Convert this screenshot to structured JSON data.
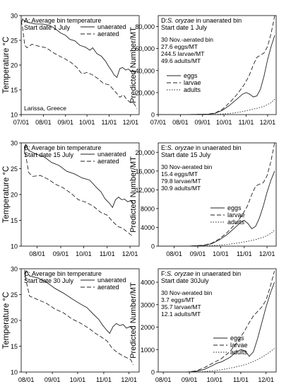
{
  "chart_data": [
    {
      "type": "line",
      "panel": "A",
      "title": "A: Average bin temperature",
      "subtitle": "Start date 1 July",
      "annotations": [
        "Larissa, Greece"
      ],
      "ylabel": "Temperature °C",
      "xlabel": "",
      "y_ticks": [
        10,
        15,
        20,
        25,
        30
      ],
      "ylim": [
        10,
        30
      ],
      "x_ticks": [
        "07/01",
        "08/01",
        "09/01",
        "10/01",
        "11/01",
        "12/01"
      ],
      "x_tick_days": [
        0,
        31,
        62,
        92,
        123,
        153
      ],
      "xlim_days": [
        0,
        165
      ],
      "legend": "top-right",
      "series": [
        {
          "name": "unaerated",
          "style": "solid",
          "x": [
            0,
            2,
            5,
            10,
            20,
            30,
            40,
            48,
            55,
            62,
            68,
            75,
            82,
            90,
            96,
            100,
            106,
            112,
            118,
            122,
            126,
            130,
            134,
            138,
            142,
            146,
            150,
            154,
            156,
            158,
            160
          ],
          "y": [
            28.3,
            29.3,
            28.8,
            28.6,
            28.3,
            28.3,
            28.0,
            27.3,
            26.5,
            26.0,
            25.2,
            24.9,
            24.0,
            23.6,
            23.0,
            23.5,
            22.3,
            21.8,
            20.8,
            19.8,
            19.0,
            18.0,
            17.5,
            19.3,
            19.5,
            19.0,
            19.2,
            18.7,
            19.0,
            18.5,
            18.4
          ]
        },
        {
          "name": "aerated",
          "style": "dashed",
          "x": [
            0,
            2,
            5,
            8,
            15,
            25,
            35,
            45,
            55,
            62,
            70,
            78,
            85,
            92,
            100,
            108,
            115,
            123,
            128,
            133,
            138,
            143,
            148,
            153,
            158,
            162
          ],
          "y": [
            29.0,
            27.5,
            24.0,
            23.5,
            24.2,
            23.8,
            23.5,
            22.5,
            21.7,
            21.2,
            20.5,
            19.5,
            18.2,
            18.5,
            18.0,
            17.2,
            16.3,
            16.0,
            15.2,
            14.4,
            13.5,
            14.0,
            13.0,
            12.4,
            12.2,
            11.2
          ]
        }
      ]
    },
    {
      "type": "line",
      "panel": "D",
      "title_prefix": "D:",
      "title_species": "S. oryzae",
      "title_suffix": " in unaerated bin",
      "subtitle": "Start date 1 July",
      "annotations": [
        "30 Nov.-aerated bin",
        "27.6 eggs/MT",
        "244.5 larvae/MT",
        "49.6 adults/MT"
      ],
      "ylabel": "Predicted Number/MT",
      "xlabel": "",
      "y_ticks": [
        0,
        20000,
        40000,
        60000,
        80000
      ],
      "y_tick_labels": [
        "0",
        "20,000",
        "40,000",
        "60,000",
        "80,000"
      ],
      "ylim": [
        0,
        90000
      ],
      "x_ticks": [
        "07/01",
        "08/01",
        "09/01",
        "10/01",
        "11/01",
        "12/01"
      ],
      "x_tick_days": [
        0,
        31,
        62,
        92,
        123,
        153
      ],
      "xlim_days": [
        0,
        165
      ],
      "legend": "center-left",
      "series": [
        {
          "name": "eggs",
          "style": "solid",
          "x": [
            0,
            40,
            70,
            80,
            90,
            100,
            110,
            118,
            123,
            128,
            133,
            138,
            143,
            148,
            153,
            158,
            163
          ],
          "y": [
            0,
            0,
            300,
            1200,
            4000,
            8500,
            14000,
            18500,
            20000,
            18500,
            16000,
            17000,
            23000,
            35000,
            50000,
            62000,
            72000
          ]
        },
        {
          "name": "larvae",
          "style": "dashed",
          "x": [
            0,
            40,
            70,
            80,
            90,
            100,
            110,
            120,
            127,
            133,
            138,
            143,
            148,
            153,
            158,
            163
          ],
          "y": [
            0,
            0,
            400,
            1500,
            5000,
            11000,
            18000,
            27000,
            35000,
            45000,
            52000,
            54000,
            56000,
            62000,
            74000,
            90000
          ]
        },
        {
          "name": "adults",
          "style": "dotted",
          "x": [
            0,
            60,
            80,
            90,
            100,
            110,
            120,
            130,
            140,
            150,
            158,
            163
          ],
          "y": [
            0,
            0,
            200,
            500,
            1000,
            1800,
            3000,
            4500,
            6000,
            8000,
            11000,
            14000
          ]
        }
      ]
    },
    {
      "type": "line",
      "panel": "B",
      "title": "B: Average bin temperature",
      "subtitle": "Start date 15 July",
      "ylabel": "Temperature °C",
      "xlabel": "",
      "y_ticks": [
        10,
        15,
        20,
        25,
        30
      ],
      "ylim": [
        10,
        30
      ],
      "x_ticks": [
        "08/01",
        "09/01",
        "10/01",
        "11/01",
        "12/01"
      ],
      "x_tick_days": [
        31,
        62,
        92,
        123,
        153
      ],
      "xlim_days": [
        10,
        165
      ],
      "legend": "top-right",
      "series": [
        {
          "name": "unaerated",
          "style": "solid",
          "x": [
            14,
            16,
            20,
            30,
            40,
            50,
            60,
            70,
            80,
            90,
            100,
            108,
            115,
            120,
            126,
            130,
            134,
            138,
            142,
            146,
            150,
            154,
            157
          ],
          "y": [
            28.0,
            29.7,
            28.5,
            27.8,
            27.3,
            26.2,
            25.6,
            24.5,
            24.0,
            23.2,
            22.8,
            21.5,
            20.5,
            19.2,
            18.3,
            17.5,
            19.0,
            19.5,
            19.0,
            19.1,
            18.6,
            18.8,
            18.3
          ]
        },
        {
          "name": "aerated",
          "style": "dashed",
          "x": [
            14,
            16,
            20,
            25,
            35,
            45,
            55,
            65,
            75,
            85,
            95,
            105,
            115,
            123,
            130,
            137,
            143,
            148,
            153,
            157
          ],
          "y": [
            29.3,
            27.5,
            24.2,
            23.5,
            23.7,
            23.0,
            22.0,
            21.3,
            20.3,
            19.0,
            18.5,
            17.7,
            16.5,
            16.0,
            14.8,
            13.8,
            13.5,
            12.9,
            12.3,
            11.9
          ]
        }
      ]
    },
    {
      "type": "line",
      "panel": "E",
      "title_prefix": "E:",
      "title_species": "S. oryzae",
      "title_suffix": " in unaerated bin",
      "subtitle": "Start date 15 July",
      "annotations": [
        "30 Nov-aerated bin",
        "15.4 eggs/MT",
        "79.8 larvae/MT",
        "30.9 adults/MT"
      ],
      "ylabel": "Predicted Number/MT",
      "xlabel": "",
      "y_ticks": [
        0,
        4000,
        8000,
        12000,
        16000,
        20000
      ],
      "y_tick_labels": [
        "0",
        "4000",
        "8000",
        "12,000",
        "16,000",
        "20,000"
      ],
      "ylim": [
        0,
        22000
      ],
      "x_ticks": [
        "08/01",
        "09/01",
        "10/01",
        "11/01",
        "12/01"
      ],
      "x_tick_days": [
        31,
        62,
        92,
        123,
        153
      ],
      "xlim_days": [
        10,
        165
      ],
      "legend": "center-right",
      "series": [
        {
          "name": "eggs",
          "style": "solid",
          "x": [
            12,
            50,
            70,
            80,
            90,
            100,
            110,
            118,
            123,
            128,
            133,
            138,
            143,
            148,
            153,
            158,
            163
          ],
          "y": [
            0,
            0,
            150,
            500,
            1300,
            2400,
            3800,
            5000,
            5500,
            4800,
            3700,
            4200,
            6000,
            8500,
            11500,
            14000,
            16000
          ]
        },
        {
          "name": "larvae",
          "style": "dashed",
          "x": [
            12,
            50,
            70,
            80,
            90,
            100,
            110,
            120,
            127,
            133,
            138,
            143,
            148,
            153,
            158,
            163
          ],
          "y": [
            0,
            0,
            200,
            600,
            1500,
            2800,
            4500,
            6500,
            8500,
            11000,
            12800,
            13200,
            13500,
            15000,
            18000,
            22000
          ]
        },
        {
          "name": "adults",
          "style": "dotted",
          "x": [
            12,
            60,
            80,
            90,
            100,
            110,
            120,
            130,
            140,
            150,
            158,
            163
          ],
          "y": [
            0,
            0,
            100,
            200,
            350,
            550,
            800,
            1100,
            1500,
            2000,
            2700,
            3400
          ]
        }
      ]
    },
    {
      "type": "line",
      "panel": "C",
      "title": "C: Average bin temperature",
      "subtitle": "Start date 30 July",
      "ylabel": "Temperature °C",
      "xlabel": "",
      "y_ticks": [
        10,
        15,
        20,
        25,
        30
      ],
      "ylim": [
        10,
        30
      ],
      "x_ticks": [
        "08/01",
        "09/01",
        "10/01",
        "11/01",
        "12/01"
      ],
      "x_tick_days": [
        31,
        62,
        92,
        123,
        153
      ],
      "xlim_days": [
        25,
        165
      ],
      "legend": "top-right",
      "series": [
        {
          "name": "unaerated",
          "style": "solid",
          "x": [
            29,
            31,
            35,
            45,
            55,
            65,
            75,
            85,
            95,
            103,
            110,
            117,
            122,
            126,
            130,
            134,
            138,
            142,
            146,
            150,
            154,
            157
          ],
          "y": [
            28.3,
            29.6,
            28.6,
            28.2,
            27.4,
            26.2,
            25.3,
            24.2,
            23.2,
            22.5,
            21.3,
            20.2,
            19.0,
            18.2,
            17.5,
            18.8,
            19.4,
            19.0,
            19.2,
            18.5,
            18.8,
            18.3
          ]
        },
        {
          "name": "aerated",
          "style": "dashed",
          "x": [
            29,
            31,
            35,
            45,
            55,
            65,
            75,
            85,
            95,
            105,
            113,
            120,
            127,
            133,
            139,
            145,
            150,
            155,
            158
          ],
          "y": [
            29.8,
            27.5,
            24.7,
            24.0,
            23.3,
            22.2,
            21.5,
            20.3,
            19.5,
            18.5,
            17.5,
            16.8,
            16.0,
            14.6,
            13.8,
            13.2,
            12.8,
            12.4,
            11.4
          ]
        }
      ]
    },
    {
      "type": "line",
      "panel": "F",
      "title_prefix": "F:",
      "title_species": "S. oryzae",
      "title_suffix": " in unaerated bin",
      "subtitle": "Start date 30July",
      "annotations": [
        "30 Nov-aerated bin",
        "3.7 eggs/MT",
        "35.7 larvae/MT",
        "12.1 adults/MT"
      ],
      "ylabel": "Predicted Number/MT",
      "xlabel": "",
      "y_ticks": [
        0,
        1000,
        2000,
        3000,
        4000
      ],
      "y_tick_labels": [
        "0",
        "1000",
        "2000",
        "3000",
        "4000"
      ],
      "ylim": [
        0,
        4600
      ],
      "x_ticks": [
        "08/01",
        "09/01",
        "10/01",
        "11/01",
        "12/01"
      ],
      "x_tick_days": [
        31,
        62,
        92,
        123,
        153
      ],
      "xlim_days": [
        25,
        165
      ],
      "legend": "bottom-right",
      "series": [
        {
          "name": "eggs",
          "style": "solid",
          "x": [
            27,
            60,
            70,
            80,
            90,
            95,
            100,
            110,
            118,
            123,
            128,
            133,
            138,
            143,
            148,
            153,
            158,
            163
          ],
          "y": [
            0,
            0,
            30,
            120,
            300,
            400,
            450,
            650,
            900,
            1000,
            950,
            700,
            900,
            1500,
            2200,
            2900,
            3500,
            4000
          ]
        },
        {
          "name": "larvae",
          "style": "dashed",
          "x": [
            27,
            60,
            70,
            80,
            90,
            100,
            110,
            120,
            127,
            133,
            138,
            143,
            148,
            153,
            158,
            163
          ],
          "y": [
            0,
            0,
            50,
            200,
            400,
            600,
            900,
            1400,
            1800,
            2200,
            2500,
            2700,
            2900,
            3200,
            3800,
            4500
          ]
        },
        {
          "name": "adults",
          "style": "dotted",
          "x": [
            27,
            70,
            80,
            90,
            100,
            110,
            120,
            130,
            140,
            150,
            158,
            163
          ],
          "y": [
            0,
            0,
            20,
            50,
            100,
            170,
            250,
            350,
            500,
            700,
            900,
            1050
          ]
        }
      ]
    }
  ]
}
